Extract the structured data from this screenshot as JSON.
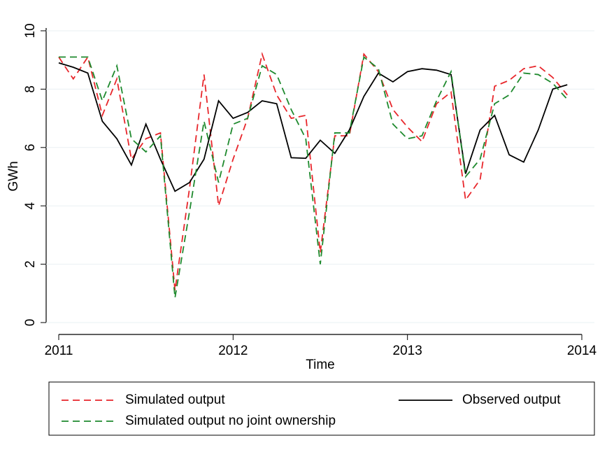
{
  "chart_data": {
    "type": "line",
    "xlabel": "Time",
    "ylabel": "GWh",
    "x": [
      2011,
      2011.0833,
      2011.1667,
      2011.25,
      2011.3333,
      2011.4167,
      2011.5,
      2011.5833,
      2011.6667,
      2011.75,
      2011.8333,
      2011.9167,
      2012,
      2012.0833,
      2012.1667,
      2012.25,
      2012.3333,
      2012.4167,
      2012.5,
      2012.5833,
      2012.6667,
      2012.75,
      2012.8333,
      2012.9167,
      2013,
      2013.0833,
      2013.1667,
      2013.25,
      2013.3333,
      2013.4167,
      2013.5,
      2013.5833,
      2013.6667,
      2013.75,
      2013.8333,
      2013.9167
    ],
    "series": [
      {
        "name": "Simulated output",
        "color": "#e8262b",
        "dashed": true,
        "values": [
          9.1,
          8.35,
          9.1,
          7.1,
          8.35,
          5.6,
          6.3,
          6.5,
          1.1,
          4.6,
          8.5,
          4.0,
          5.6,
          7.0,
          9.2,
          7.8,
          7.0,
          7.1,
          2.4,
          6.4,
          6.4,
          9.2,
          8.6,
          7.3,
          6.7,
          6.2,
          7.5,
          7.9,
          4.2,
          4.9,
          8.1,
          8.3,
          8.7,
          8.8,
          8.4,
          7.8
        ]
      },
      {
        "name": "Observed output",
        "color": "#000000",
        "dashed": false,
        "values": [
          8.9,
          8.75,
          8.55,
          6.9,
          6.3,
          5.4,
          6.8,
          5.6,
          4.5,
          4.8,
          5.6,
          7.6,
          7.0,
          7.2,
          7.6,
          7.5,
          5.65,
          5.63,
          6.25,
          5.8,
          6.6,
          7.75,
          8.55,
          8.25,
          8.6,
          8.7,
          8.65,
          8.5,
          5.1,
          6.6,
          7.1,
          5.75,
          5.5,
          6.6,
          8.0,
          8.15
        ]
      },
      {
        "name": "Simulated output no joint ownership",
        "color": "#1f8a2e",
        "dashed": true,
        "values": [
          9.1,
          9.1,
          9.1,
          7.6,
          8.8,
          6.3,
          5.85,
          6.4,
          0.85,
          3.8,
          6.9,
          4.8,
          6.8,
          7.0,
          8.8,
          8.5,
          7.3,
          6.3,
          2.0,
          6.5,
          6.5,
          9.1,
          8.7,
          6.8,
          6.3,
          6.4,
          7.6,
          8.6,
          5.0,
          5.6,
          7.5,
          7.8,
          8.55,
          8.5,
          8.2,
          7.65
        ]
      }
    ],
    "xlim": [
      2011,
      2014
    ],
    "xticks": [
      2011,
      2012,
      2013,
      2014
    ],
    "ylim": [
      0,
      10
    ],
    "yticks": [
      0,
      2,
      4,
      6,
      8,
      10
    ],
    "grid": true,
    "legend": "bottom"
  }
}
